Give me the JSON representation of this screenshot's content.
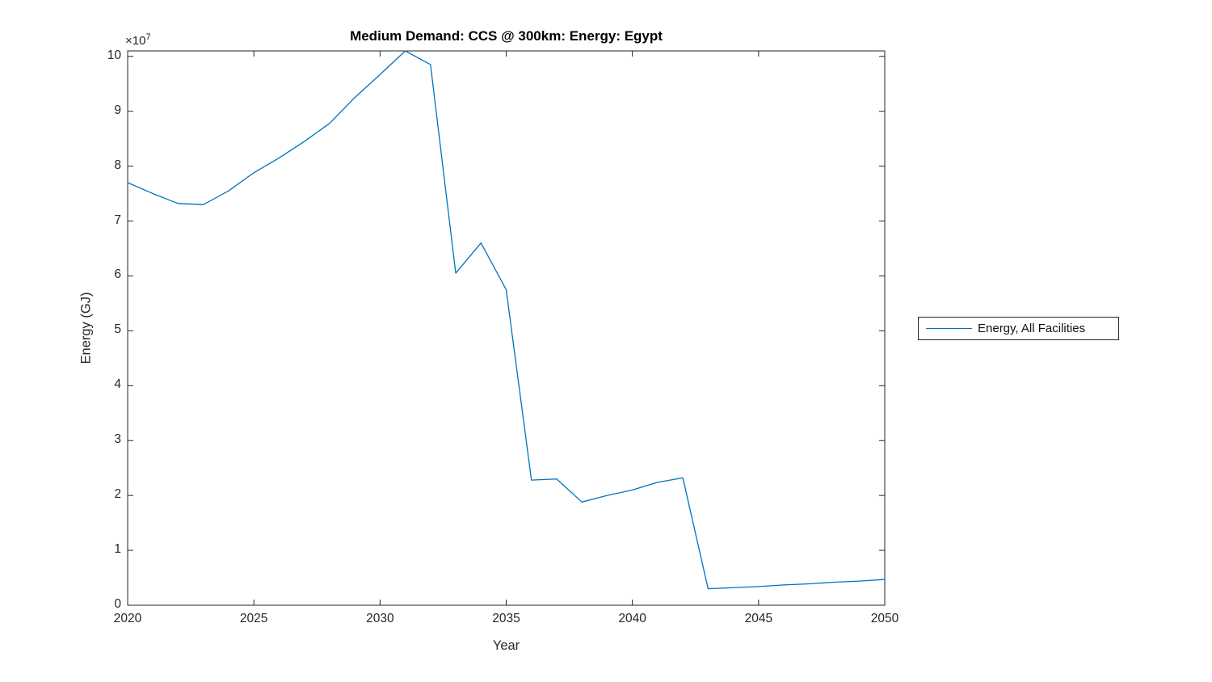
{
  "figure": {
    "title": "Medium Demand: CCS @ 300km: Energy: Egypt",
    "xlabel": "Year",
    "ylabel": "Energy (GJ)",
    "y_exponent_base": "×10",
    "y_exponent_power": "7",
    "legend": {
      "label": "Energy, All Facilities"
    },
    "colors": {
      "line": "#0072BD",
      "axis": "#262626",
      "title": "#000000",
      "background": "#ffffff"
    }
  },
  "chart_data": {
    "type": "line",
    "title": "Medium Demand: CCS @ 300km: Energy: Egypt",
    "xlabel": "Year",
    "ylabel": "Energy (GJ)",
    "y_unit_multiplier": "1e7",
    "grid": false,
    "legend_position": "outside-right",
    "legend_entries": [
      "Energy, All Facilities"
    ],
    "xlim": [
      2020,
      2050
    ],
    "ylim_x1e7": [
      0,
      10.1
    ],
    "x_ticks": [
      2020,
      2025,
      2030,
      2035,
      2040,
      2045,
      2050
    ],
    "y_ticks_x1e7": [
      0,
      1,
      2,
      3,
      4,
      5,
      6,
      7,
      8,
      9,
      10
    ],
    "x": [
      2020,
      2021,
      2022,
      2023,
      2024,
      2025,
      2026,
      2027,
      2028,
      2029,
      2030,
      2031,
      2032,
      2033,
      2034,
      2035,
      2036,
      2037,
      2038,
      2039,
      2040,
      2041,
      2042,
      2043,
      2044,
      2045,
      2046,
      2047,
      2048,
      2049,
      2050
    ],
    "series": [
      {
        "name": "Energy, All Facilities",
        "values_x1e7": [
          7.7,
          7.5,
          7.32,
          7.3,
          7.55,
          7.88,
          8.15,
          8.45,
          8.78,
          9.25,
          9.67,
          10.1,
          9.85,
          6.05,
          6.6,
          5.75,
          2.28,
          2.3,
          1.88,
          2.0,
          2.1,
          2.24,
          2.32,
          0.3,
          0.32,
          0.34,
          0.37,
          0.39,
          0.42,
          0.44,
          0.47
        ]
      }
    ]
  }
}
